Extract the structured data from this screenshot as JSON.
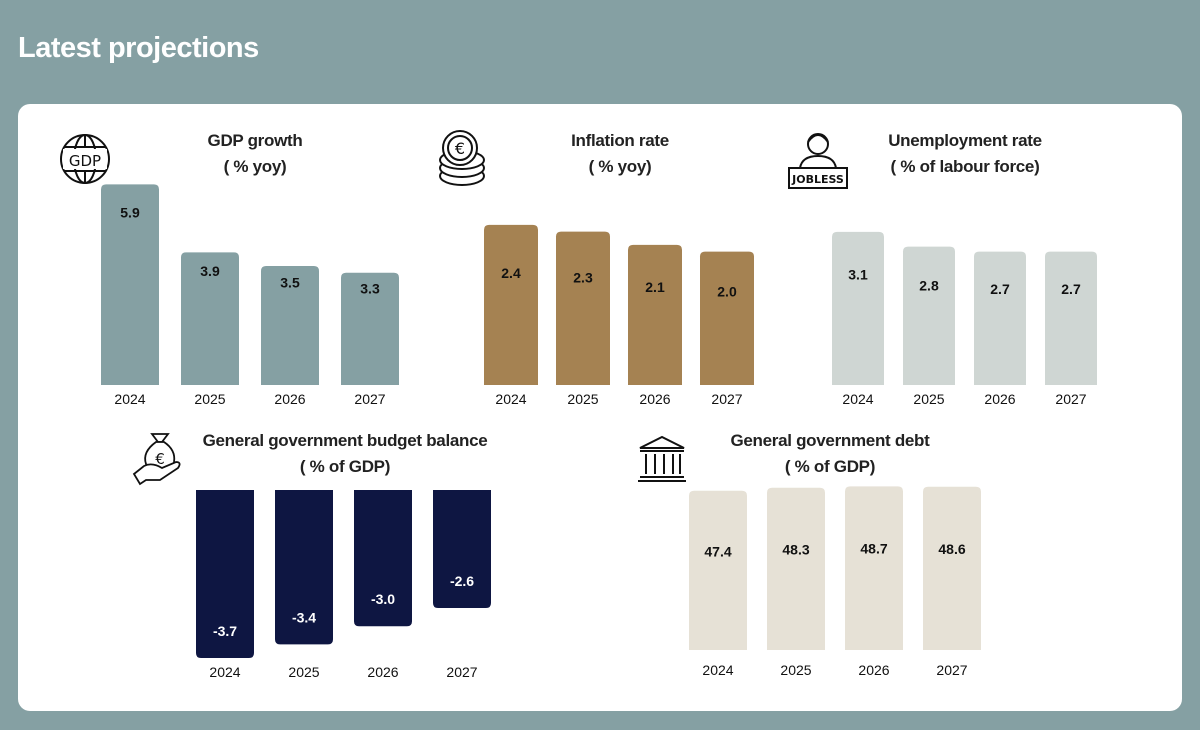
{
  "header": {
    "title": "Latest projections"
  },
  "chart_data": [
    {
      "id": "gdp",
      "type": "bar",
      "title": "GDP growth",
      "subtitle": "( % yoy)",
      "icon": "gdp-globe-icon",
      "color": "#85a0a3",
      "label_color": "#111111",
      "categories": [
        "2024",
        "2025",
        "2026",
        "2027"
      ],
      "values": [
        5.9,
        3.9,
        3.5,
        3.3
      ]
    },
    {
      "id": "inflation",
      "type": "bar",
      "title": "Inflation rate",
      "subtitle": "( % yoy)",
      "icon": "euro-coins-icon",
      "color": "#a58252",
      "label_color": "#111111",
      "categories": [
        "2024",
        "2025",
        "2026",
        "2027"
      ],
      "values": [
        2.4,
        2.3,
        2.1,
        2.0
      ]
    },
    {
      "id": "unemployment",
      "type": "bar",
      "title": "Unemployment rate",
      "subtitle": "( % of labour force)",
      "icon": "jobless-person-icon",
      "icon_text": "JOBLESS",
      "color": "#cfd6d3",
      "label_color": "#111111",
      "categories": [
        "2024",
        "2025",
        "2026",
        "2027"
      ],
      "values": [
        3.1,
        2.8,
        2.7,
        2.7
      ]
    },
    {
      "id": "budget",
      "type": "bar",
      "title": "General government budget balance",
      "subtitle": "( % of GDP)",
      "icon": "money-bag-hand-icon",
      "color": "#0e1642",
      "label_color": "#ffffff",
      "categories": [
        "2024",
        "2025",
        "2026",
        "2027"
      ],
      "values": [
        -3.7,
        -3.4,
        -3.0,
        -2.6
      ]
    },
    {
      "id": "debt",
      "type": "bar",
      "title": "General government debt",
      "subtitle": "( % of GDP)",
      "icon": "bank-building-icon",
      "color": "#e6e1d6",
      "label_color": "#111111",
      "categories": [
        "2024",
        "2025",
        "2026",
        "2027"
      ],
      "values": [
        47.4,
        48.3,
        48.7,
        48.6
      ]
    }
  ]
}
